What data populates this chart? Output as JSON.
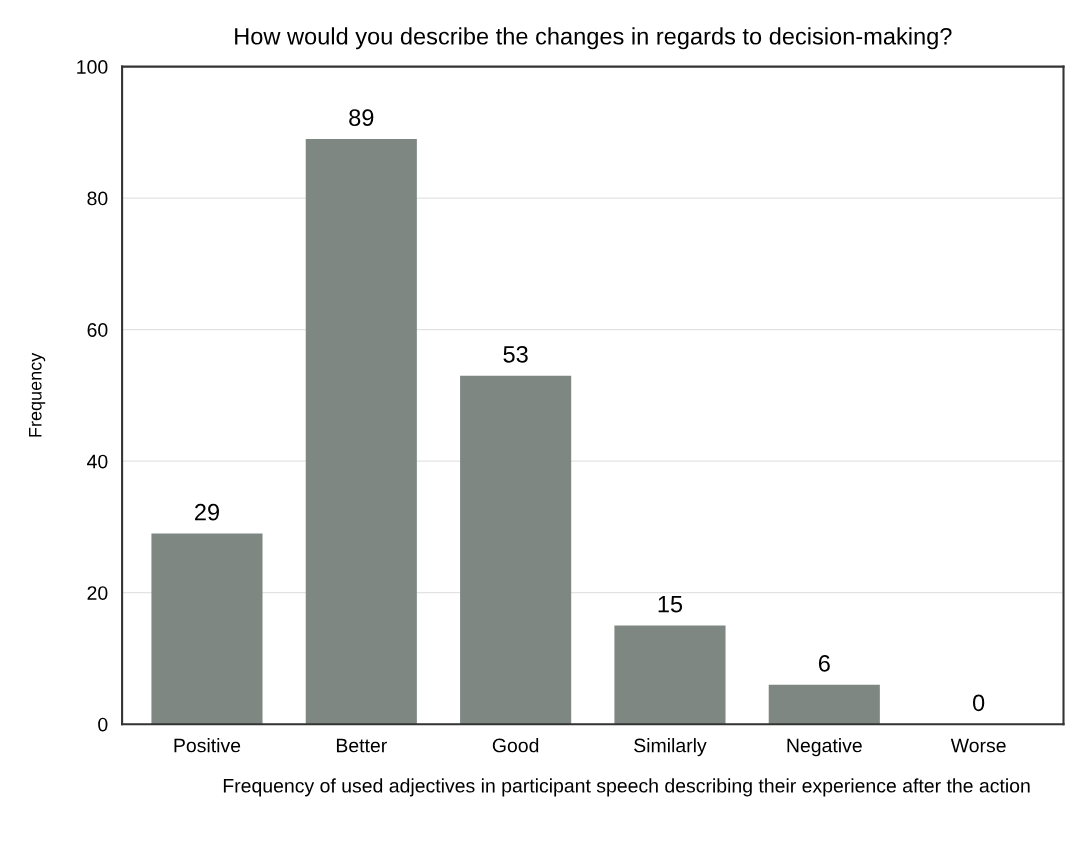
{
  "chart_data": {
    "type": "bar",
    "title": "How would you describe the changes in regards to decision-making?",
    "xlabel": "Frequency of used adjectives in participant speech describing their experience after the action",
    "ylabel": "Frequency",
    "categories": [
      "Positive",
      "Better",
      "Good",
      "Similarly",
      "Negative",
      "Worse"
    ],
    "values": [
      29,
      89,
      53,
      15,
      6,
      0
    ],
    "color": "#7f8783",
    "ylim": [
      0,
      100
    ],
    "yticks": [
      0,
      20,
      40,
      60,
      80,
      100
    ],
    "grid": "y",
    "data_labels": true
  }
}
